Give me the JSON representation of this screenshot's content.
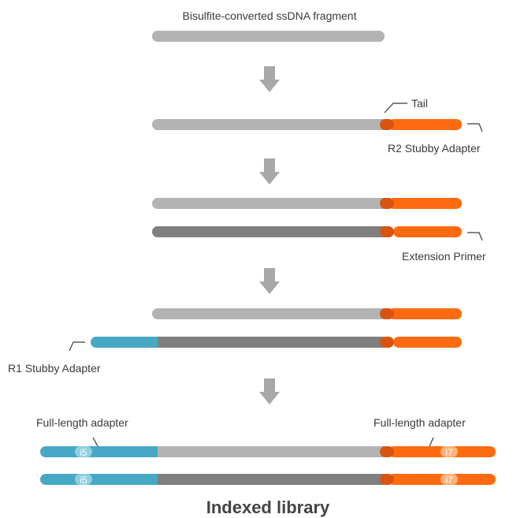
{
  "title": "Bisulfite-converted ssDNA fragment",
  "labels": {
    "tail": "Tail",
    "r2_stubby_adapter": "R2 Stubby Adapter",
    "extension_primer": "Extension Primer",
    "r1_stubby_adapter": "R1 Stubby Adapter",
    "full_length_adapter_left": "Full-length adapter",
    "full_length_adapter_right": "Full-length adapter",
    "i5": "i5",
    "i7": "i7",
    "indexed_library": "Indexed library"
  },
  "colors": {
    "ssdna_light": "#b3b3b3",
    "ssdna_dark": "#7f7f7f",
    "tail": "#d9550f",
    "adapter_orange": "#fe6a10",
    "adapter_blue": "#46a8c5",
    "arrow": "#a8a8a8",
    "index_badge_blue": "#8fcfe0",
    "index_badge_orange": "#ffb27a"
  },
  "icons": {
    "step_arrow": "arrow-down-icon"
  }
}
